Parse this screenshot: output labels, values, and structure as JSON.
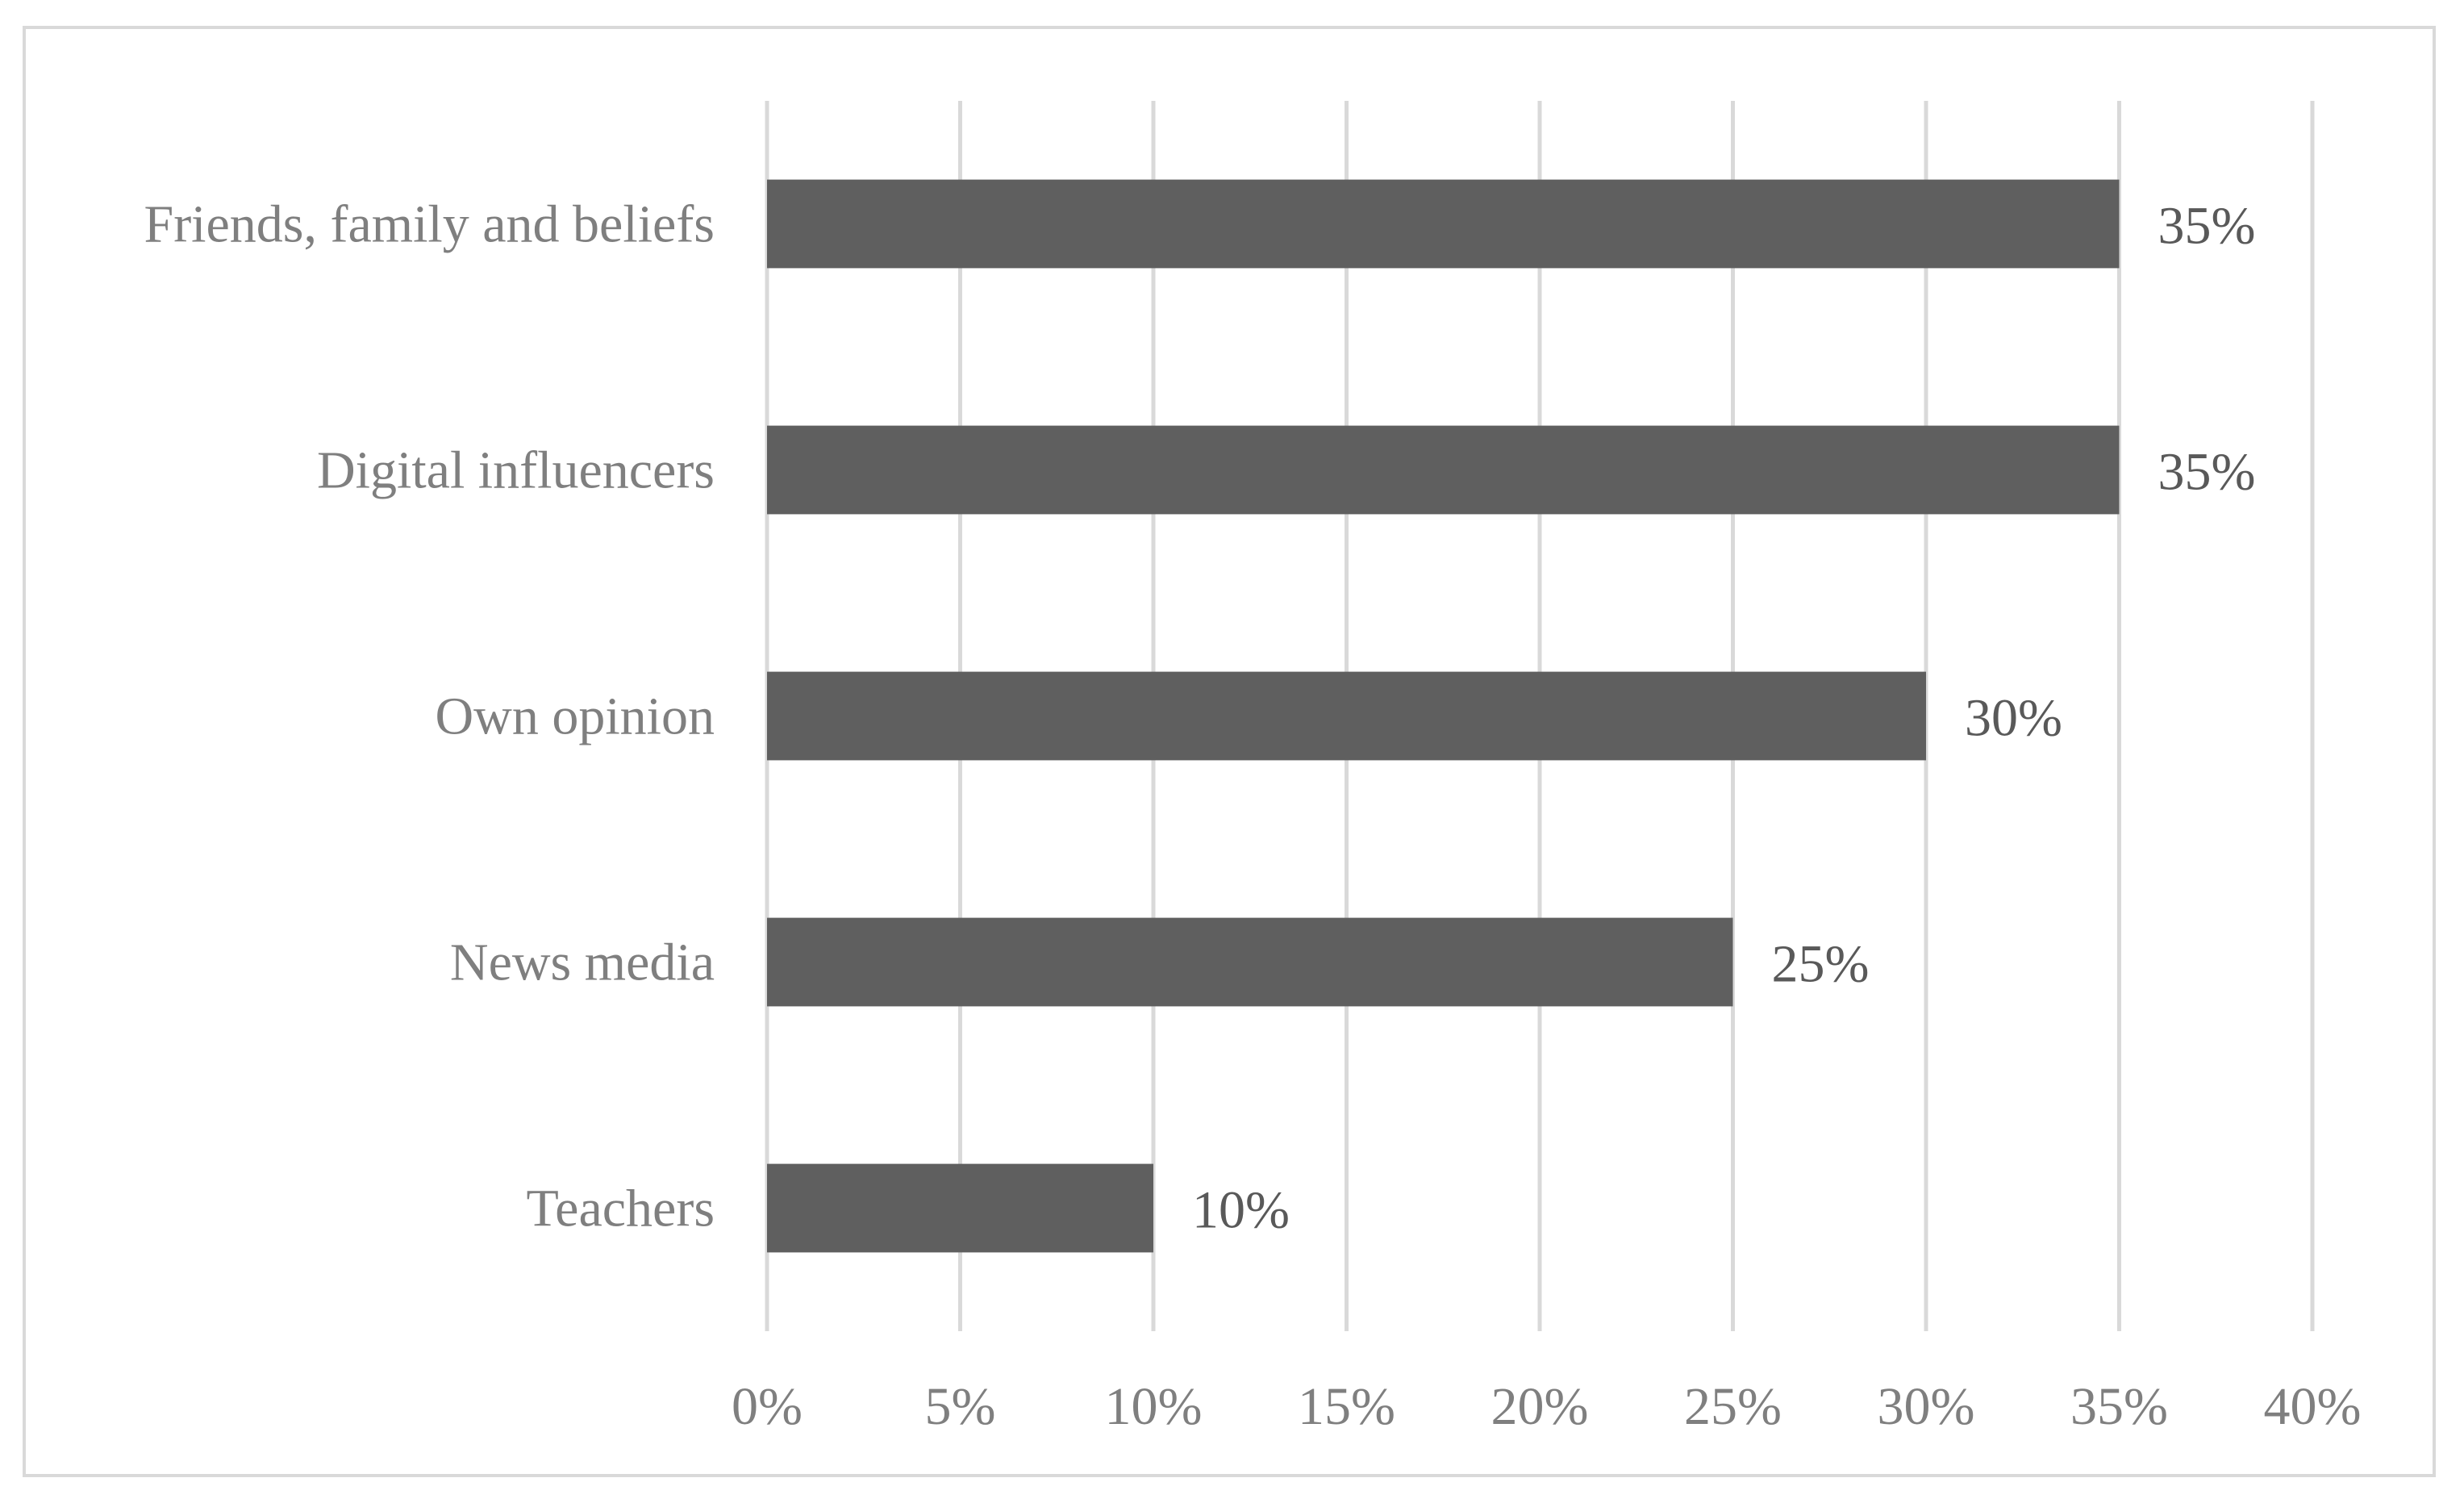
{
  "chart_data": {
    "type": "bar",
    "orientation": "horizontal",
    "title": "",
    "xlabel": "",
    "ylabel": "",
    "categories": [
      "Friends, family and beliefs",
      "Digital influencers",
      "Own opinion",
      "News media",
      "Teachers"
    ],
    "values": [
      35,
      35,
      30,
      25,
      10
    ],
    "data_labels": [
      "35%",
      "35%",
      "30%",
      "25%",
      "10%"
    ],
    "xlim": [
      0,
      40
    ],
    "x_ticks": [
      0,
      5,
      10,
      15,
      20,
      25,
      30,
      35,
      40
    ],
    "x_tick_labels": [
      "0%",
      "5%",
      "10%",
      "15%",
      "20%",
      "25%",
      "30%",
      "35%",
      "40%"
    ],
    "grid": true,
    "legend": "none",
    "colors": {
      "bar": "#5f5f5f",
      "grid": "#d9d9d9",
      "frame": "#d9d9d9",
      "label_text": "#7f7f7f",
      "data_label_text": "#595959"
    }
  }
}
